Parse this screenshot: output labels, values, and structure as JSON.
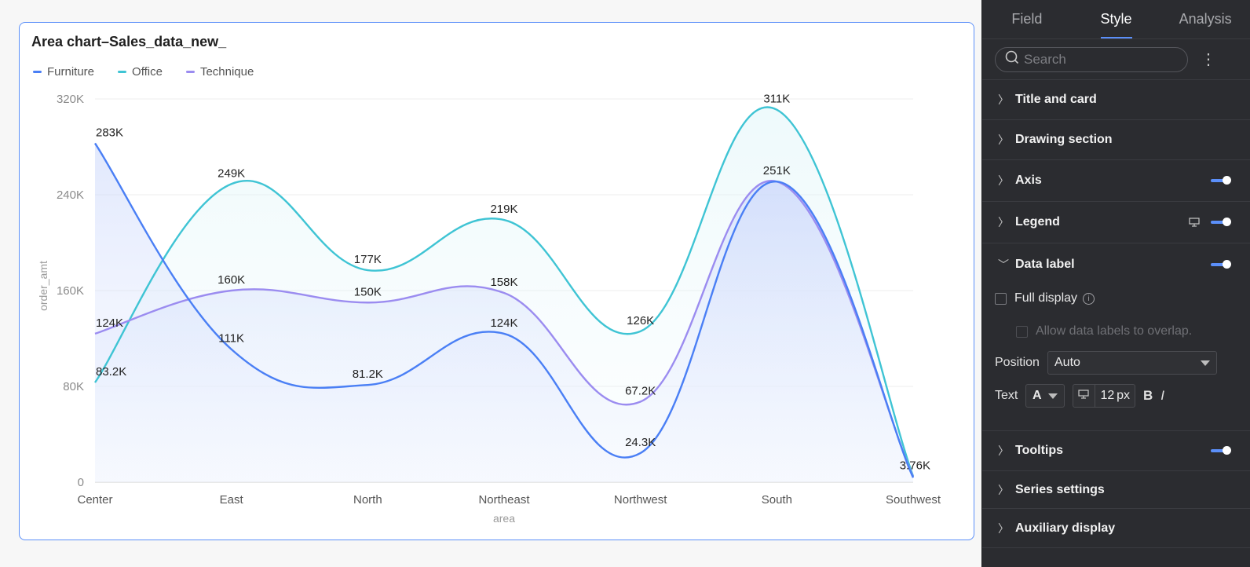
{
  "chart_card": {
    "title": "Area chart–Sales_data_new_"
  },
  "chart_data": {
    "type": "area",
    "title": "Area chart–Sales_data_new_",
    "xlabel": "area",
    "ylabel": "order_amt",
    "categories": [
      "Center",
      "East",
      "North",
      "Northeast",
      "Northwest",
      "South",
      "Southwest"
    ],
    "y_ticks": [
      "0",
      "80K",
      "160K",
      "240K",
      "320K"
    ],
    "ylim": [
      0,
      320000
    ],
    "grid": true,
    "legend_position": "top-left",
    "series": [
      {
        "name": "Furniture",
        "color": "#4a7ff5",
        "values": [
          283000,
          111000,
          81200,
          124000,
          24300,
          251000,
          3760
        ],
        "labels": [
          "283K",
          "111K",
          "81.2K",
          "124K",
          "24.3K",
          "",
          "3.76K"
        ]
      },
      {
        "name": "Office",
        "color": "#3fc4d4",
        "values": [
          83200,
          249000,
          177000,
          219000,
          126000,
          311000,
          5000
        ],
        "labels": [
          "83.2K",
          "249K",
          "177K",
          "219K",
          "126K",
          "311K",
          ""
        ]
      },
      {
        "name": "Technique",
        "color": "#9b8cf0",
        "values": [
          124000,
          160000,
          150000,
          158000,
          67200,
          251000,
          4500
        ],
        "labels": [
          "124K",
          "160K",
          "150K",
          "158K",
          "67.2K",
          "251K",
          ""
        ]
      }
    ]
  },
  "panel": {
    "tabs": [
      "Field",
      "Style",
      "Analysis"
    ],
    "active_tab": "Style",
    "search_placeholder": "Search",
    "sections": {
      "title_and_card": "Title and card",
      "drawing_section": "Drawing section",
      "axis": "Axis",
      "legend": "Legend",
      "data_label": "Data label",
      "tooltips": "Tooltips",
      "series_settings": "Series settings",
      "auxiliary_display": "Auxiliary display"
    },
    "data_label_options": {
      "full_display": "Full display",
      "allow_overlap": "Allow data labels to overlap.",
      "position_label": "Position",
      "position_value": "Auto",
      "text_label": "Text",
      "font_letter": "A",
      "font_size": "12",
      "font_unit": "px",
      "bold": "B",
      "italic": "I"
    },
    "accent_color": "#5b8ff9"
  }
}
